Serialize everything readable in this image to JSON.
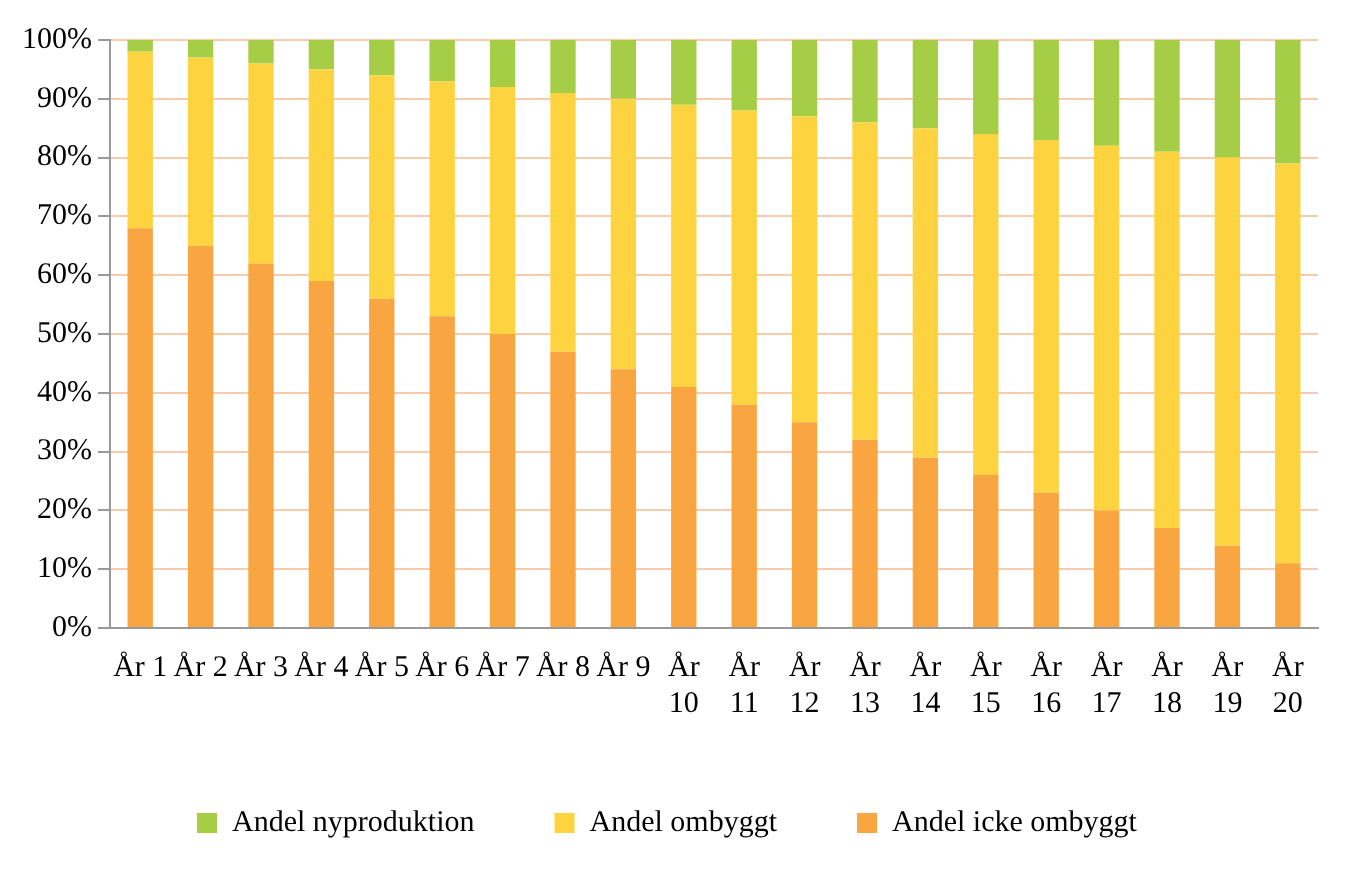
{
  "chart_data": {
    "type": "bar",
    "stacked": true,
    "categories": [
      "År 1",
      "År 2",
      "År 3",
      "År 4",
      "År 5",
      "År 6",
      "År 7",
      "År 8",
      "År 9",
      "År 10",
      "År 11",
      "År 12",
      "År 13",
      "År 14",
      "År 15",
      "År 16",
      "År 17",
      "År 18",
      "År 19",
      "År 20"
    ],
    "series": [
      {
        "name": "Andel icke ombyggt",
        "color": "#f9a541",
        "values": [
          68,
          65,
          62,
          59,
          56,
          53,
          50,
          47,
          44,
          41,
          38,
          35,
          32,
          29,
          26,
          23,
          20,
          17,
          14,
          11
        ]
      },
      {
        "name": "Andel ombyggt",
        "color": "#fdd440",
        "values": [
          30,
          32,
          34,
          36,
          38,
          40,
          42,
          44,
          46,
          48,
          50,
          52,
          54,
          56,
          58,
          60,
          62,
          64,
          66,
          68
        ]
      },
      {
        "name": "Andel nyproduktion",
        "color": "#a5cd45",
        "values": [
          2,
          3,
          4,
          5,
          6,
          7,
          8,
          9,
          10,
          11,
          12,
          13,
          14,
          15,
          16,
          17,
          18,
          19,
          20,
          21
        ]
      }
    ],
    "ylim": [
      0,
      100
    ],
    "yticks": [
      {
        "value": 0,
        "label": "0%"
      },
      {
        "value": 10,
        "label": "10%"
      },
      {
        "value": 20,
        "label": "20%"
      },
      {
        "value": 30,
        "label": "30%"
      },
      {
        "value": 40,
        "label": "40%"
      },
      {
        "value": 50,
        "label": "50%"
      },
      {
        "value": 60,
        "label": "60%"
      },
      {
        "value": 70,
        "label": "70%"
      },
      {
        "value": 80,
        "label": "80%"
      },
      {
        "value": 90,
        "label": "90%"
      },
      {
        "value": 100,
        "label": "100%"
      }
    ],
    "grid": "y",
    "legend": "bottom"
  }
}
